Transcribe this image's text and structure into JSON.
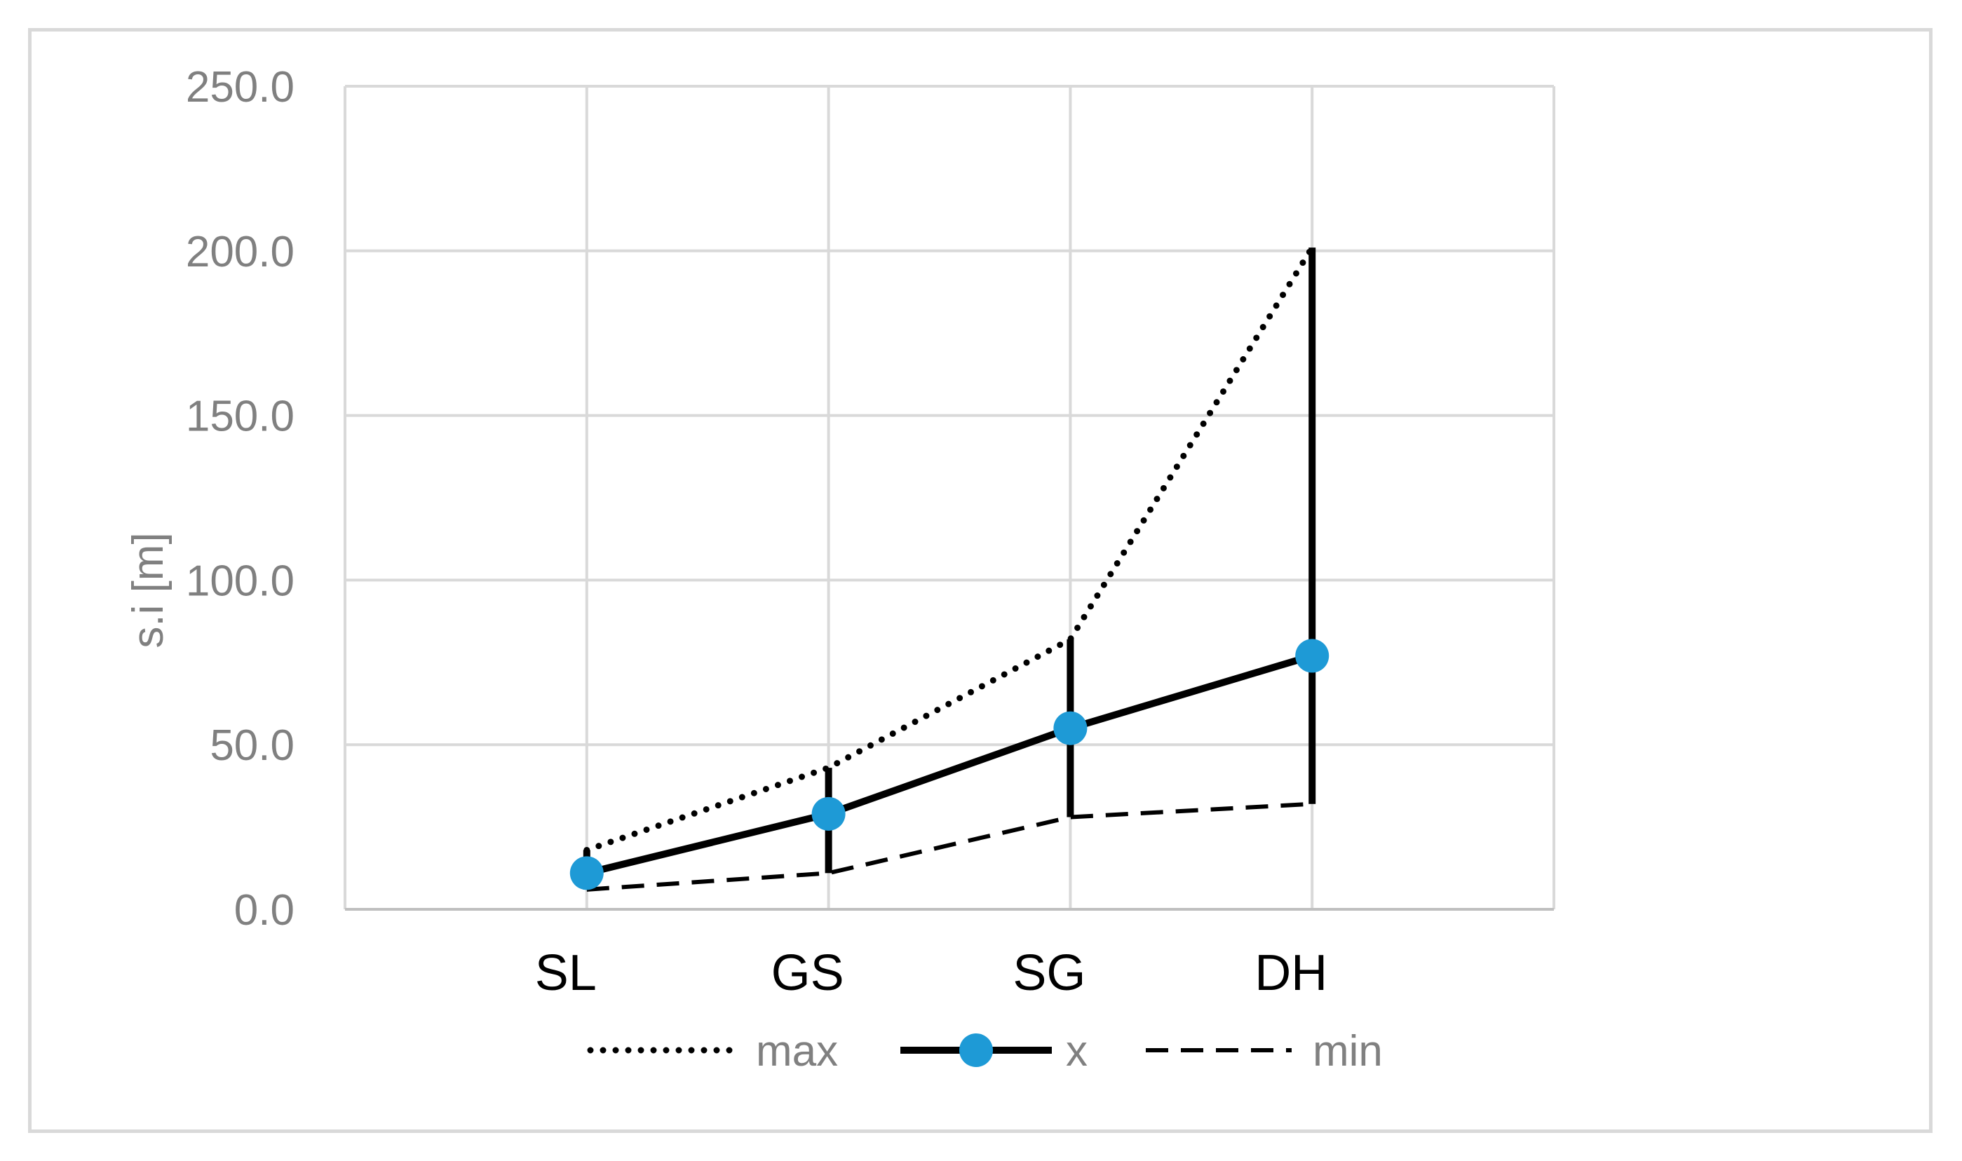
{
  "chart_data": {
    "type": "line",
    "title": "",
    "xlabel": "",
    "ylabel": "s.i [m]",
    "categories": [
      "SL",
      "GS",
      "SG",
      "DH"
    ],
    "ylim": [
      0,
      250
    ],
    "yticks": [
      "0.0",
      "50.0",
      "100.0",
      "150.0",
      "200.0",
      "250.0"
    ],
    "grid": true,
    "legend_position": "bottom",
    "series": [
      {
        "name": "max",
        "values": [
          18,
          43,
          82,
          201
        ],
        "style": "dotted",
        "color": "#000000"
      },
      {
        "name": "x",
        "values": [
          11,
          29,
          55,
          77
        ],
        "style": "solid-with-markers",
        "color": "#000000",
        "marker_color": "#1e9ad6"
      },
      {
        "name": "min",
        "values": [
          6,
          11,
          28,
          32
        ],
        "style": "dashed",
        "color": "#000000"
      }
    ],
    "error_bars": "vertical range lines from min to max at each category"
  }
}
